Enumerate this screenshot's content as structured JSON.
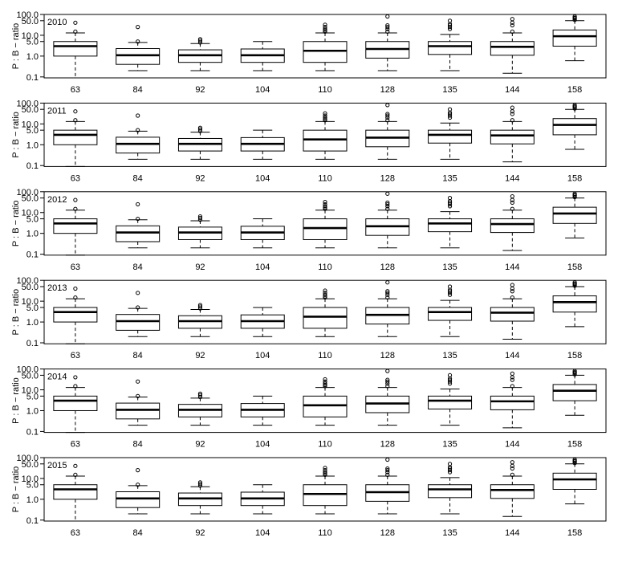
{
  "chart_data": {
    "type": "box",
    "ylabel": "P : B − ratio",
    "yscale": "log",
    "yticks": [
      "0.1",
      "1.0",
      "5.0",
      "10.0",
      "50.0",
      "100.0"
    ],
    "ytick_values": [
      0.1,
      1.0,
      5.0,
      10.0,
      50.0,
      100.0
    ],
    "categories": [
      "63",
      "84",
      "92",
      "104",
      "110",
      "128",
      "135",
      "144",
      "158"
    ],
    "panels": [
      {
        "year": "2010",
        "boxes": [
          {
            "min": 0.09,
            "q1": 1.0,
            "median": 3.0,
            "q3": 5.0,
            "max": 13,
            "outliers": [
              15,
              40
            ]
          },
          {
            "min": 0.2,
            "q1": 0.4,
            "median": 1.1,
            "q3": 2.3,
            "max": 4.5,
            "outliers": [
              5,
              25
            ]
          },
          {
            "min": 0.2,
            "q1": 0.5,
            "median": 1.1,
            "q3": 2.0,
            "max": 4.0,
            "outliers": [
              4.5,
              5.5,
              6.5
            ]
          },
          {
            "min": 0.2,
            "q1": 0.5,
            "median": 1.1,
            "q3": 2.2,
            "max": 5.0,
            "outliers": []
          },
          {
            "min": 0.2,
            "q1": 0.5,
            "median": 1.8,
            "q3": 5.0,
            "max": 13,
            "outliers": [
              15,
              17,
              20,
              25,
              32
            ]
          },
          {
            "min": 0.2,
            "q1": 0.8,
            "median": 2.2,
            "q3": 5.0,
            "max": 13,
            "outliers": [
              15,
              20,
              25,
              30,
              80
            ]
          },
          {
            "min": 0.2,
            "q1": 1.2,
            "median": 3.0,
            "q3": 5.0,
            "max": 11,
            "outliers": [
              20,
              25,
              30,
              35,
              50
            ]
          },
          {
            "min": 0.15,
            "q1": 1.1,
            "median": 2.8,
            "q3": 5.0,
            "max": 13,
            "outliers": [
              15,
              30,
              40,
              60
            ]
          },
          {
            "min": 0.6,
            "q1": 3.0,
            "median": 9.0,
            "q3": 18,
            "max": 50,
            "outliers": [
              55,
              65,
              70,
              80
            ]
          }
        ]
      },
      {
        "year": "2011",
        "boxes": [
          {
            "min": 0.09,
            "q1": 1.0,
            "median": 3.0,
            "q3": 5.0,
            "max": 13,
            "outliers": [
              15,
              40
            ]
          },
          {
            "min": 0.2,
            "q1": 0.4,
            "median": 1.1,
            "q3": 2.3,
            "max": 4.5,
            "outliers": [
              5,
              25
            ]
          },
          {
            "min": 0.2,
            "q1": 0.5,
            "median": 1.1,
            "q3": 2.0,
            "max": 4.0,
            "outliers": [
              4.5,
              5.5,
              6.5
            ]
          },
          {
            "min": 0.2,
            "q1": 0.5,
            "median": 1.1,
            "q3": 2.2,
            "max": 5.0,
            "outliers": []
          },
          {
            "min": 0.2,
            "q1": 0.5,
            "median": 1.8,
            "q3": 5.0,
            "max": 13,
            "outliers": [
              15,
              17,
              20,
              25,
              32
            ]
          },
          {
            "min": 0.2,
            "q1": 0.8,
            "median": 2.2,
            "q3": 5.0,
            "max": 13,
            "outliers": [
              15,
              20,
              25,
              30,
              80
            ]
          },
          {
            "min": 0.2,
            "q1": 1.2,
            "median": 3.0,
            "q3": 5.0,
            "max": 11,
            "outliers": [
              20,
              25,
              30,
              35,
              50
            ]
          },
          {
            "min": 0.15,
            "q1": 1.1,
            "median": 2.8,
            "q3": 5.0,
            "max": 13,
            "outliers": [
              15,
              30,
              40,
              60
            ]
          },
          {
            "min": 0.6,
            "q1": 3.0,
            "median": 9.0,
            "q3": 18,
            "max": 50,
            "outliers": [
              55,
              65,
              70,
              80
            ]
          }
        ]
      },
      {
        "year": "2012",
        "boxes": [
          {
            "min": 0.09,
            "q1": 1.0,
            "median": 3.0,
            "q3": 5.0,
            "max": 13,
            "outliers": [
              15,
              40
            ]
          },
          {
            "min": 0.2,
            "q1": 0.4,
            "median": 1.1,
            "q3": 2.3,
            "max": 4.5,
            "outliers": [
              5,
              25
            ]
          },
          {
            "min": 0.2,
            "q1": 0.5,
            "median": 1.1,
            "q3": 2.0,
            "max": 4.0,
            "outliers": [
              4.5,
              5.5,
              6.5
            ]
          },
          {
            "min": 0.2,
            "q1": 0.5,
            "median": 1.1,
            "q3": 2.2,
            "max": 5.0,
            "outliers": []
          },
          {
            "min": 0.2,
            "q1": 0.5,
            "median": 1.8,
            "q3": 5.0,
            "max": 13,
            "outliers": [
              15,
              17,
              20,
              25,
              32
            ]
          },
          {
            "min": 0.2,
            "q1": 0.8,
            "median": 2.2,
            "q3": 5.0,
            "max": 13,
            "outliers": [
              15,
              20,
              25,
              30,
              80
            ]
          },
          {
            "min": 0.2,
            "q1": 1.2,
            "median": 3.0,
            "q3": 5.0,
            "max": 11,
            "outliers": [
              20,
              25,
              30,
              35,
              50
            ]
          },
          {
            "min": 0.15,
            "q1": 1.1,
            "median": 2.8,
            "q3": 5.0,
            "max": 13,
            "outliers": [
              15,
              30,
              40,
              60
            ]
          },
          {
            "min": 0.6,
            "q1": 3.0,
            "median": 9.0,
            "q3": 18,
            "max": 50,
            "outliers": [
              55,
              65,
              70,
              80
            ]
          }
        ]
      },
      {
        "year": "2013",
        "boxes": [
          {
            "min": 0.09,
            "q1": 1.0,
            "median": 3.0,
            "q3": 5.0,
            "max": 13,
            "outliers": [
              15,
              40
            ]
          },
          {
            "min": 0.2,
            "q1": 0.4,
            "median": 1.1,
            "q3": 2.3,
            "max": 4.5,
            "outliers": [
              5,
              25
            ]
          },
          {
            "min": 0.2,
            "q1": 0.5,
            "median": 1.1,
            "q3": 2.0,
            "max": 4.0,
            "outliers": [
              4.5,
              5.5,
              6.5
            ]
          },
          {
            "min": 0.2,
            "q1": 0.5,
            "median": 1.1,
            "q3": 2.2,
            "max": 5.0,
            "outliers": []
          },
          {
            "min": 0.2,
            "q1": 0.5,
            "median": 1.8,
            "q3": 5.0,
            "max": 13,
            "outliers": [
              15,
              17,
              20,
              25,
              32
            ]
          },
          {
            "min": 0.2,
            "q1": 0.8,
            "median": 2.2,
            "q3": 5.0,
            "max": 13,
            "outliers": [
              15,
              20,
              25,
              30,
              80
            ]
          },
          {
            "min": 0.2,
            "q1": 1.2,
            "median": 3.0,
            "q3": 5.0,
            "max": 11,
            "outliers": [
              20,
              25,
              30,
              35,
              50
            ]
          },
          {
            "min": 0.15,
            "q1": 1.1,
            "median": 2.8,
            "q3": 5.0,
            "max": 13,
            "outliers": [
              15,
              30,
              40,
              60
            ]
          },
          {
            "min": 0.6,
            "q1": 3.0,
            "median": 9.0,
            "q3": 18,
            "max": 50,
            "outliers": [
              55,
              65,
              70,
              80
            ]
          }
        ]
      },
      {
        "year": "2014",
        "boxes": [
          {
            "min": 0.09,
            "q1": 1.0,
            "median": 3.0,
            "q3": 5.0,
            "max": 13,
            "outliers": [
              15,
              40
            ]
          },
          {
            "min": 0.2,
            "q1": 0.4,
            "median": 1.1,
            "q3": 2.3,
            "max": 4.5,
            "outliers": [
              5,
              25
            ]
          },
          {
            "min": 0.2,
            "q1": 0.5,
            "median": 1.1,
            "q3": 2.0,
            "max": 4.0,
            "outliers": [
              4.5,
              5.5,
              6.5
            ]
          },
          {
            "min": 0.2,
            "q1": 0.5,
            "median": 1.1,
            "q3": 2.2,
            "max": 5.0,
            "outliers": []
          },
          {
            "min": 0.2,
            "q1": 0.5,
            "median": 1.8,
            "q3": 5.0,
            "max": 13,
            "outliers": [
              15,
              17,
              20,
              25,
              32
            ]
          },
          {
            "min": 0.2,
            "q1": 0.8,
            "median": 2.2,
            "q3": 5.0,
            "max": 13,
            "outliers": [
              15,
              20,
              25,
              30,
              80
            ]
          },
          {
            "min": 0.2,
            "q1": 1.2,
            "median": 3.0,
            "q3": 5.0,
            "max": 11,
            "outliers": [
              20,
              25,
              30,
              35,
              50
            ]
          },
          {
            "min": 0.15,
            "q1": 1.1,
            "median": 2.8,
            "q3": 5.0,
            "max": 13,
            "outliers": [
              15,
              30,
              40,
              60
            ]
          },
          {
            "min": 0.6,
            "q1": 3.0,
            "median": 9.0,
            "q3": 18,
            "max": 50,
            "outliers": [
              55,
              65,
              70,
              80
            ]
          }
        ]
      },
      {
        "year": "2015",
        "boxes": [
          {
            "min": 0.09,
            "q1": 1.0,
            "median": 3.0,
            "q3": 5.0,
            "max": 13,
            "outliers": [
              15,
              40
            ]
          },
          {
            "min": 0.2,
            "q1": 0.4,
            "median": 1.1,
            "q3": 2.3,
            "max": 4.5,
            "outliers": [
              5,
              25
            ]
          },
          {
            "min": 0.2,
            "q1": 0.5,
            "median": 1.1,
            "q3": 2.0,
            "max": 4.0,
            "outliers": [
              4.5,
              5.5,
              6.5
            ]
          },
          {
            "min": 0.2,
            "q1": 0.5,
            "median": 1.1,
            "q3": 2.2,
            "max": 5.0,
            "outliers": []
          },
          {
            "min": 0.2,
            "q1": 0.5,
            "median": 1.8,
            "q3": 5.0,
            "max": 13,
            "outliers": [
              15,
              17,
              20,
              25,
              32
            ]
          },
          {
            "min": 0.2,
            "q1": 0.8,
            "median": 2.2,
            "q3": 5.0,
            "max": 13,
            "outliers": [
              15,
              20,
              25,
              30,
              80
            ]
          },
          {
            "min": 0.2,
            "q1": 1.2,
            "median": 3.0,
            "q3": 5.0,
            "max": 11,
            "outliers": [
              20,
              25,
              30,
              35,
              50
            ]
          },
          {
            "min": 0.15,
            "q1": 1.1,
            "median": 2.8,
            "q3": 5.0,
            "max": 13,
            "outliers": [
              15,
              30,
              40,
              60
            ]
          },
          {
            "min": 0.6,
            "q1": 3.0,
            "median": 9.0,
            "q3": 18,
            "max": 50,
            "outliers": [
              55,
              65,
              70,
              80
            ]
          }
        ]
      }
    ]
  }
}
